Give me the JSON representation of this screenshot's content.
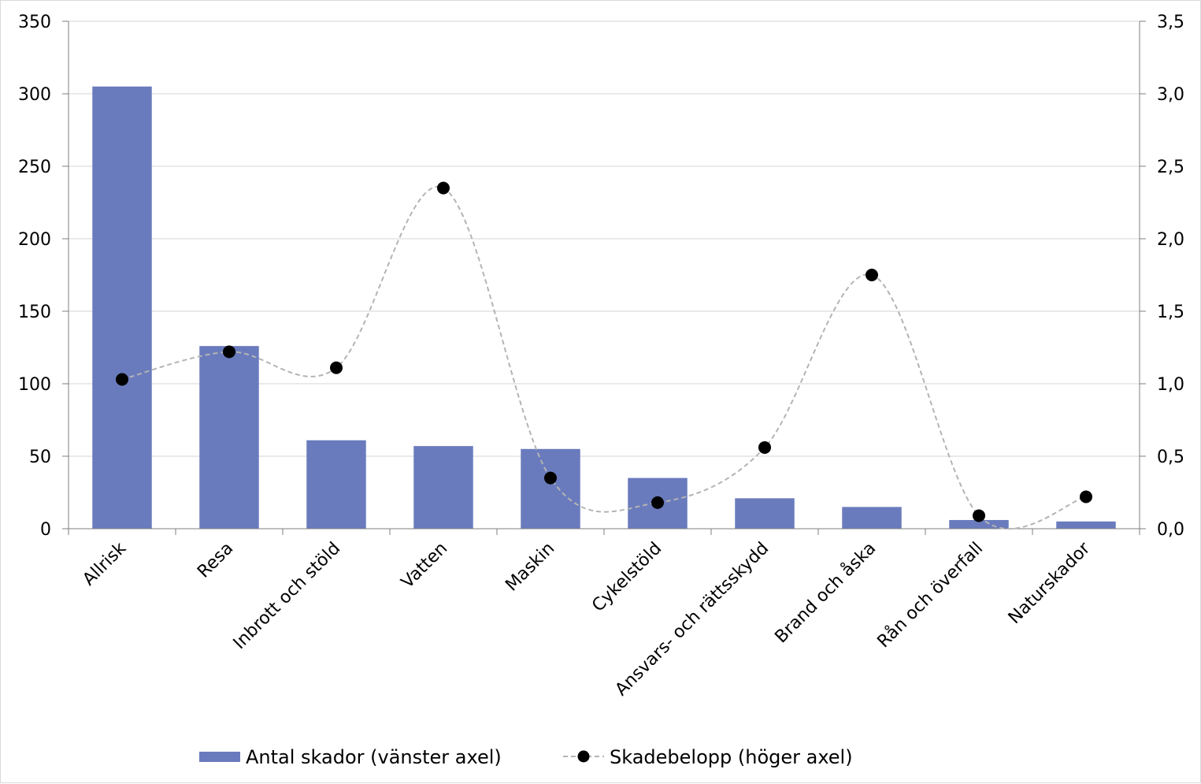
{
  "chart_data": {
    "type": "bar",
    "categories": [
      "Allrisk",
      "Resa",
      "Inbrott och stöld",
      "Vatten",
      "Maskin",
      "Cykelstöld",
      "Ansvars- och rättsskydd",
      "Brand och åska",
      "Rån och överfall",
      "Naturskador"
    ],
    "series": [
      {
        "name": "Antal skador (vänster axel)",
        "type": "bar",
        "axis": "left",
        "color": "#6a7bbd",
        "values": [
          305,
          126,
          61,
          57,
          55,
          35,
          21,
          15,
          6,
          5
        ]
      },
      {
        "name": "Skadebelopp (höger axel)",
        "type": "line",
        "axis": "right",
        "line_style": "dashed-smooth",
        "line_color": "#b4b4b4",
        "marker_color": "#000000",
        "values": [
          1.03,
          1.22,
          1.11,
          2.35,
          0.35,
          0.18,
          0.56,
          1.75,
          0.09,
          0.22
        ]
      }
    ],
    "y_left": {
      "ylim": [
        0,
        350
      ],
      "ticks": [
        "0",
        "50",
        "100",
        "150",
        "200",
        "250",
        "300",
        "350"
      ]
    },
    "y_right": {
      "ylim": [
        0,
        3.5
      ],
      "ticks": [
        "0,0",
        "0,5",
        "1,0",
        "1,5",
        "2,0",
        "2,5",
        "3,0",
        "3,5"
      ]
    },
    "grid": true,
    "legend_position": "bottom",
    "category_label_rotation": -45,
    "title": "",
    "xlabel": "",
    "ylabel": ""
  }
}
